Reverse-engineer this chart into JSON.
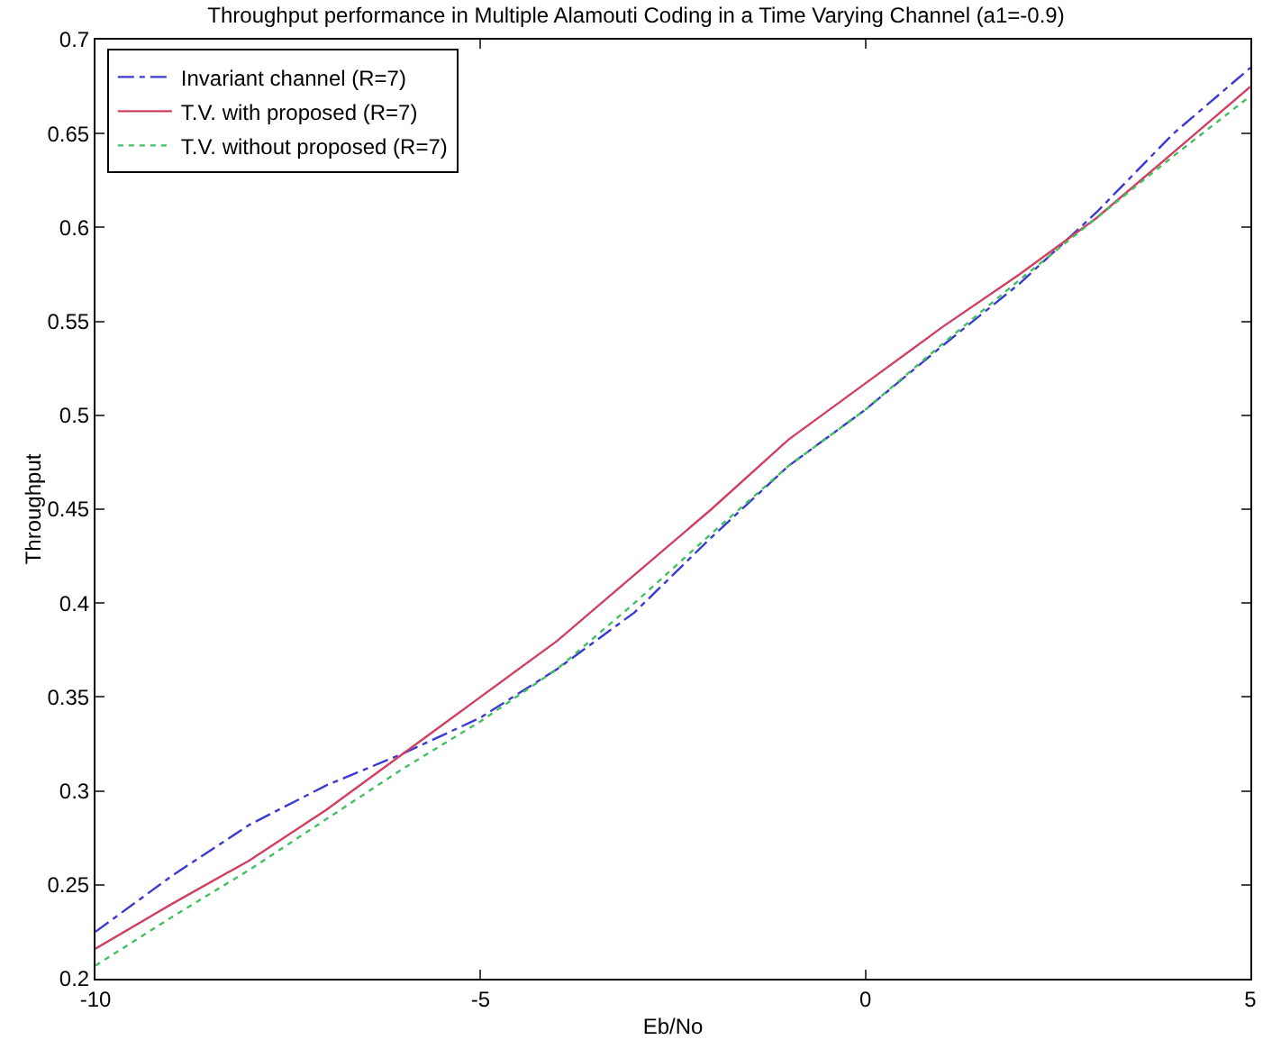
{
  "chart_data": {
    "type": "line",
    "title": "Throughput performance in Multiple Alamouti Coding in a Time Varying Channel (a1=-0.9)",
    "xlabel": "Eb/No",
    "ylabel": "Throughput",
    "x": [
      -10,
      -9,
      -8,
      -7,
      -6,
      -5,
      -4,
      -3,
      -2,
      -1,
      0,
      1,
      2,
      3,
      4,
      5
    ],
    "series": [
      {
        "name": "Invariant channel (R=7)",
        "color": "#3a3ad0",
        "line_style": "dashed",
        "values": [
          0.225,
          0.255,
          0.282,
          0.303,
          0.32,
          0.339,
          0.365,
          0.395,
          0.435,
          0.473,
          0.503,
          0.537,
          0.57,
          0.608,
          0.65,
          0.685
        ]
      },
      {
        "name": "T.V. with proposed (R=7)",
        "color": "#d04060",
        "values": [
          0.216,
          0.24,
          0.263,
          0.29,
          0.32,
          0.35,
          0.38,
          0.415,
          0.45,
          0.487,
          0.517,
          0.547,
          0.575,
          0.605,
          0.64,
          0.675
        ]
      },
      {
        "name": "T.V. without proposed (R=7)",
        "color": "#40c060",
        "line_style": "dotted",
        "values": [
          0.207,
          0.233,
          0.258,
          0.285,
          0.312,
          0.337,
          0.365,
          0.4,
          0.437,
          0.473,
          0.503,
          0.538,
          0.572,
          0.605,
          0.638,
          0.67
        ]
      }
    ],
    "xlim": [
      -10,
      5
    ],
    "xticks": [
      -10,
      -5,
      0,
      5
    ],
    "ylim": [
      0.2,
      0.7
    ],
    "yticks": [
      0.2,
      0.25,
      0.3,
      0.35,
      0.4,
      0.45,
      0.5,
      0.55,
      0.6,
      0.65,
      0.7
    ],
    "grid": false,
    "legend": "top left",
    "line_style": "solid",
    "marker": "none"
  }
}
